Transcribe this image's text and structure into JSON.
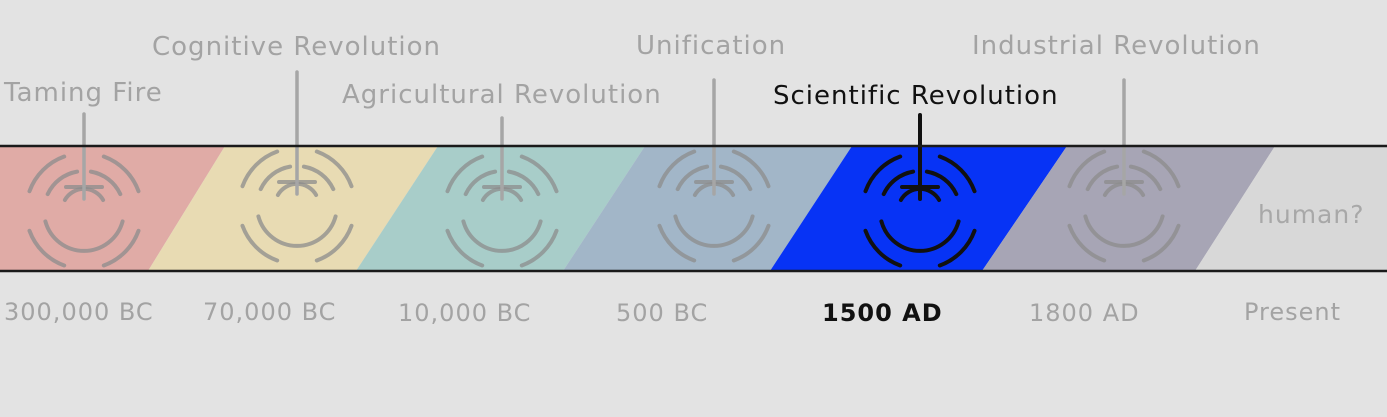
{
  "timeline": {
    "segments": [
      {
        "label": "Taming Fire",
        "date": "300,000 BC",
        "color": "#e0aba6",
        "active": false
      },
      {
        "label": "Cognitive Revolution",
        "date": "70,000 BC",
        "color": "#e8dbb3",
        "active": false
      },
      {
        "label": "Agricultural Revolution",
        "date": "10,000 BC",
        "color": "#a8cdc9",
        "active": false
      },
      {
        "label": "Unification",
        "date": "500 BC",
        "color": "#a2b6c8",
        "active": false
      },
      {
        "label": "Scientific Revolution",
        "date": "1500 AD",
        "color": "#0733f5",
        "active": true
      },
      {
        "label": "Industrial Revolution",
        "date": "1800 AD",
        "color": "#a7a5b5",
        "active": false
      }
    ],
    "tail": {
      "label": "human?",
      "date": "Present",
      "color": "#d8d8d8"
    },
    "colors": {
      "inactive_text": "#a3a3a3",
      "active_text": "#111111",
      "bar_outline": "#1a1a1a",
      "background": "#e3e3e3"
    }
  }
}
